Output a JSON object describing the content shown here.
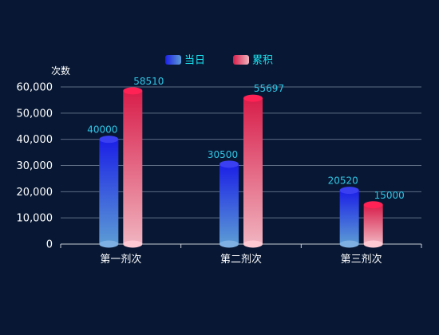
{
  "chart_data": {
    "type": "bar",
    "ylabel": "次数",
    "ylim": [
      0,
      60000
    ],
    "yticks": [
      0,
      10000,
      20000,
      30000,
      40000,
      50000,
      60000
    ],
    "ytick_labels": [
      "0",
      "10,000",
      "20,000",
      "30,000",
      "40,000",
      "50,000",
      "60,000"
    ],
    "grid": true,
    "legend": "top-center",
    "categories": [
      "第一剂次",
      "第二剂次",
      "第三剂次"
    ],
    "series": [
      {
        "name": "当日",
        "values": [
          40000,
          30500,
          20520
        ],
        "color_top": "#1b1fe6",
        "color_bottom": "#5b9bd5",
        "cap_color": "#3a3ff2"
      },
      {
        "name": "累积",
        "values": [
          58510,
          55697,
          15000
        ],
        "color_top": "#d81e4a",
        "color_bottom": "#f0b3bf",
        "cap_color": "#ff2255"
      }
    ],
    "data_labels": [
      [
        "40000",
        "30500",
        "20520"
      ],
      [
        "58510",
        "55697",
        "15000"
      ]
    ]
  }
}
